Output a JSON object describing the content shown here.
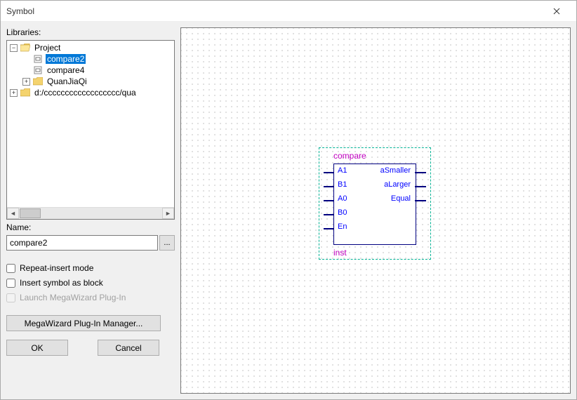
{
  "window": {
    "title": "Symbol"
  },
  "labels": {
    "libraries": "Libraries:",
    "name": "Name:"
  },
  "tree": {
    "items": [
      {
        "indent": 0,
        "expander": "-",
        "icon": "folder-open",
        "label": "Project",
        "selected": false
      },
      {
        "indent": 1,
        "expander": "",
        "icon": "doc",
        "label": "compare2",
        "selected": true
      },
      {
        "indent": 1,
        "expander": "",
        "icon": "doc",
        "label": "compare4",
        "selected": false
      },
      {
        "indent": 1,
        "expander": "+",
        "icon": "folder",
        "label": "QuanJiaQi",
        "selected": false
      },
      {
        "indent": 0,
        "expander": "+",
        "icon": "folder",
        "label": "d:/cccccccccccccccccc/qua",
        "selected": false
      }
    ]
  },
  "nameField": {
    "value": "compare2"
  },
  "checks": {
    "repeat": {
      "label": "Repeat-insert mode",
      "checked": false,
      "disabled": false
    },
    "block": {
      "label": "Insert symbol as block",
      "checked": false,
      "disabled": false
    },
    "mega": {
      "label": "Launch MegaWizard Plug-In",
      "checked": false,
      "disabled": true
    }
  },
  "buttons": {
    "megawizard": "MegaWizard Plug-In Manager...",
    "ok": "OK",
    "cancel": "Cancel",
    "browse": "..."
  },
  "symbol": {
    "name": "compare",
    "inst": "inst",
    "leftPins": [
      "A1",
      "B1",
      "A0",
      "B0",
      "En"
    ],
    "rightPins": [
      "aSmaller",
      "aLarger",
      "Equal"
    ]
  },
  "colors": {
    "selection": "#0078d7",
    "symbolBorder": "#000080",
    "pinLabel": "#0000ff",
    "symLabel": "#c000c0",
    "dashBorder": "#00b294"
  }
}
